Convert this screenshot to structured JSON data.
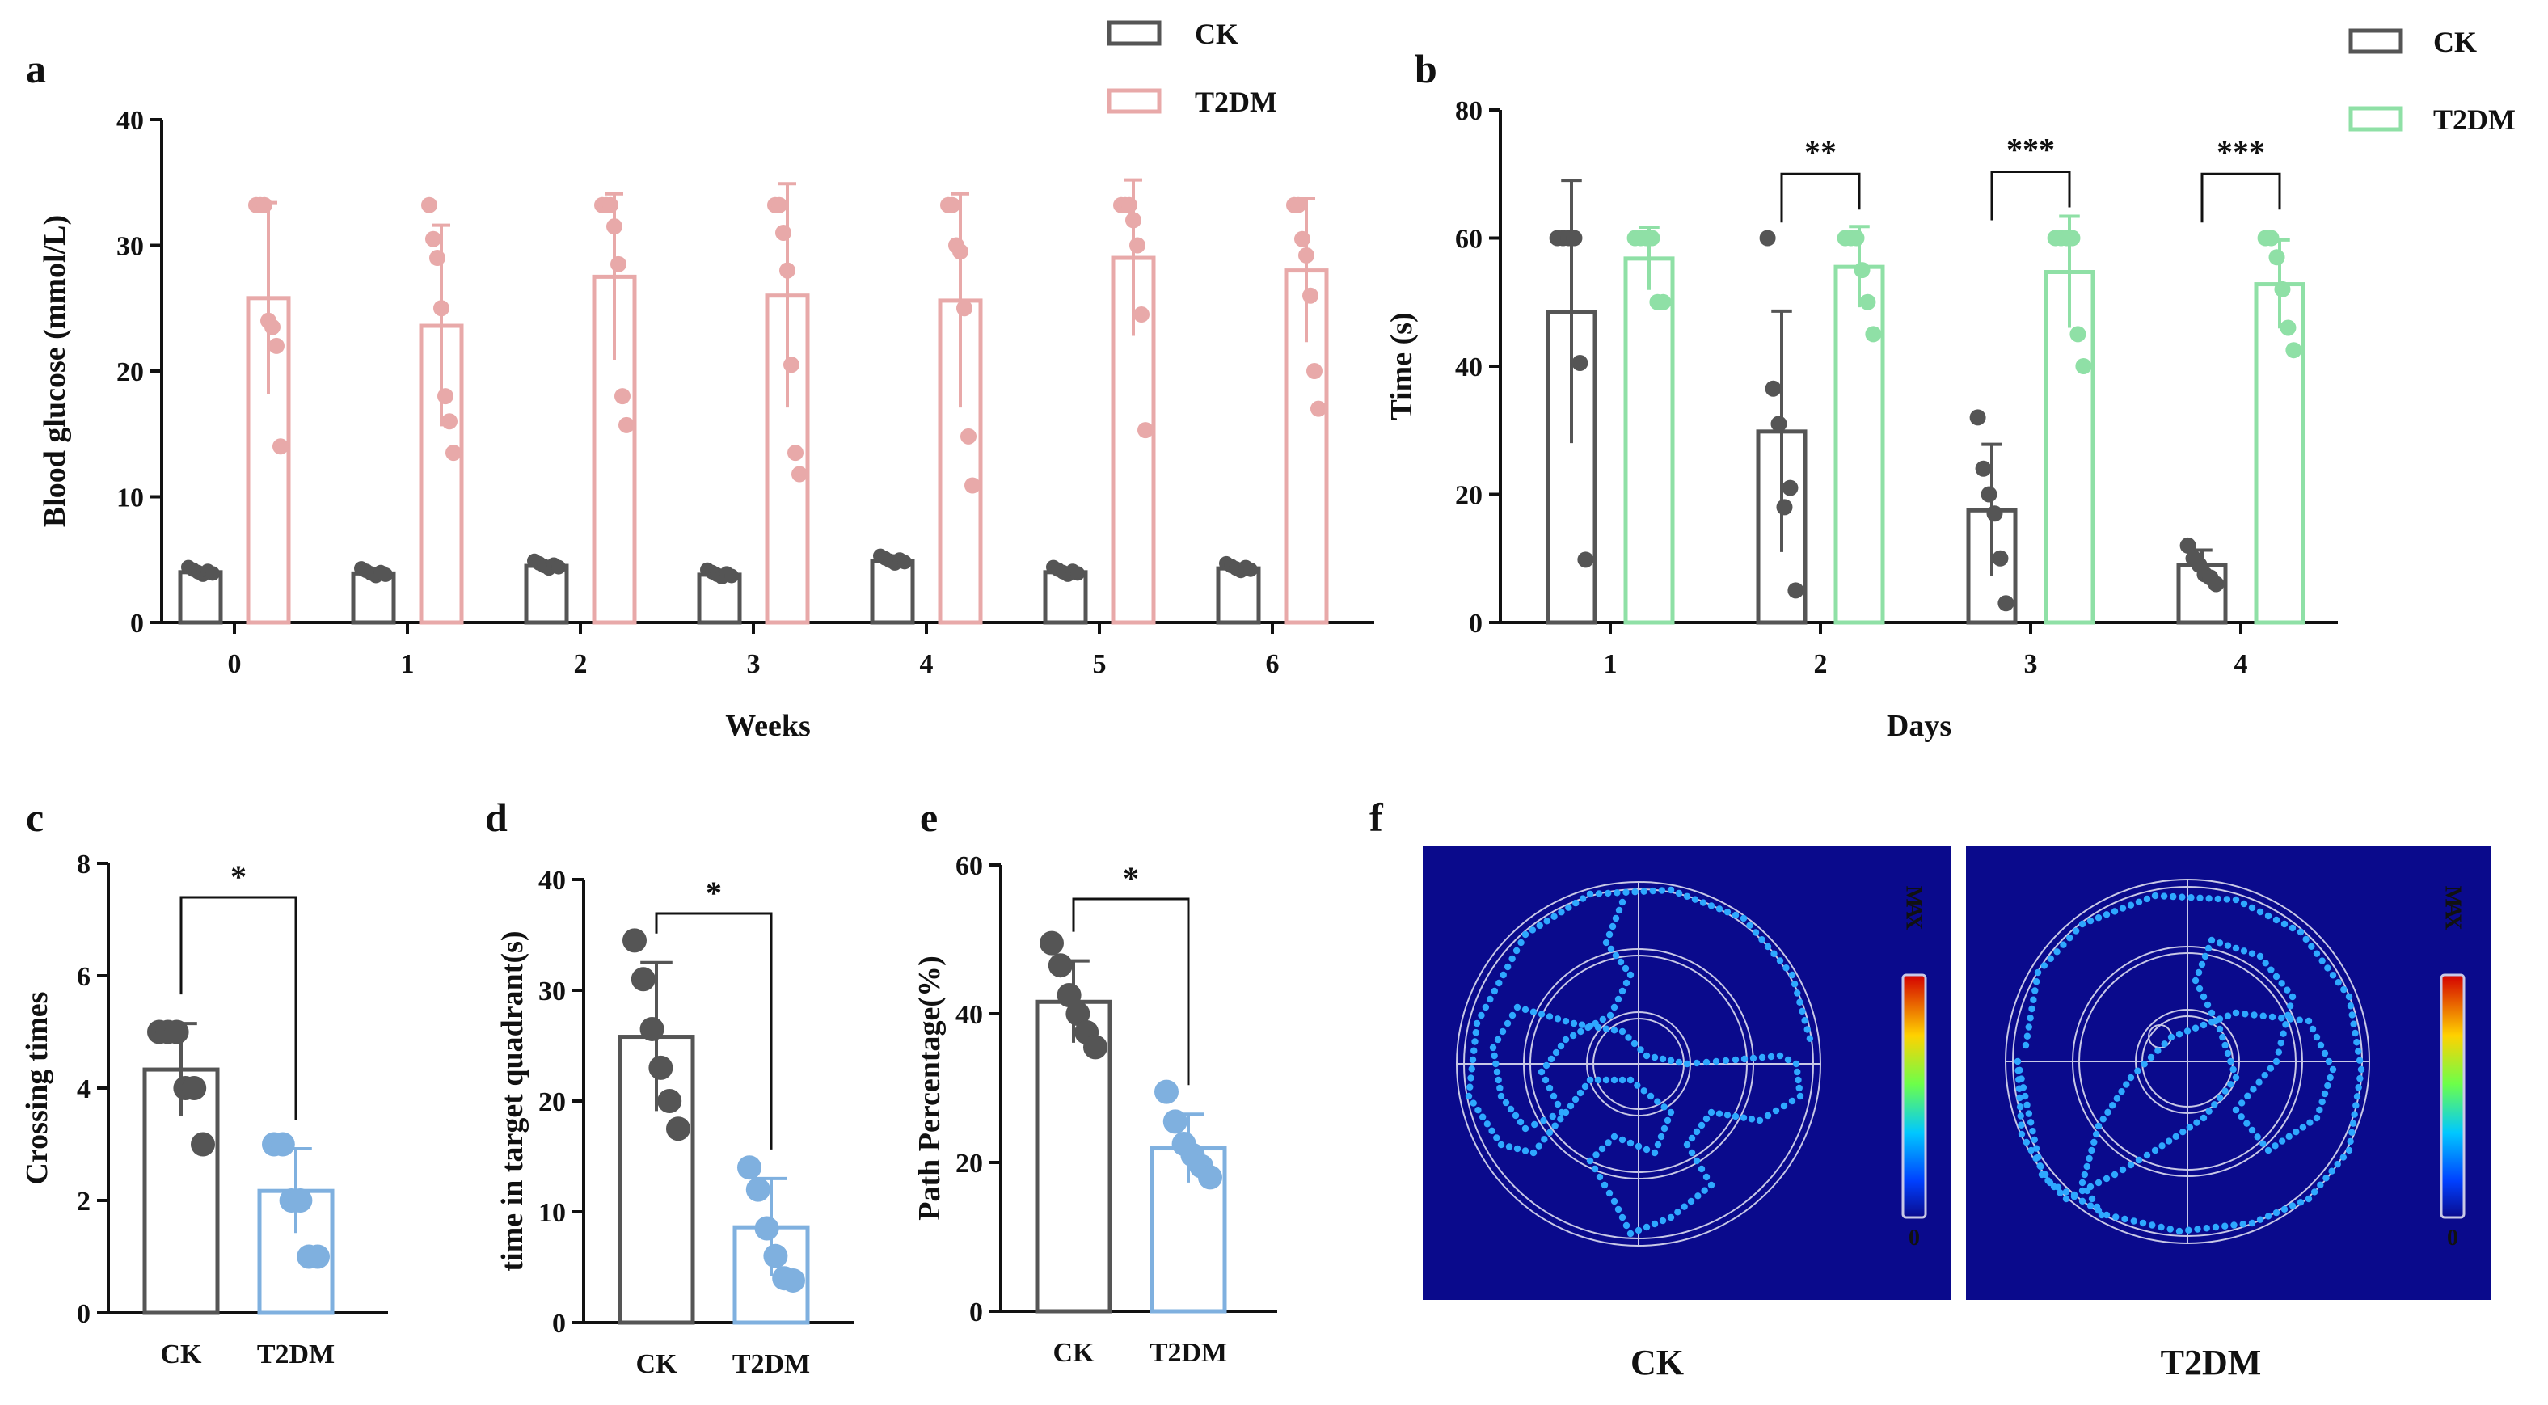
{
  "colors": {
    "ck": "#555555",
    "t2dm_a": "#e8a9a9",
    "t2dm_b": "#8fe0a6",
    "t2dm_c": "#7fb0df",
    "map_bg": "#0a0a8c"
  },
  "panel_a": {
    "letter": "a",
    "legend": [
      {
        "label": "CK"
      },
      {
        "label": "T2DM"
      }
    ],
    "chart_data": {
      "type": "bar",
      "xlabel": "Weeks",
      "ylabel": "Blood glucose (mmol/L)",
      "ylim": [
        0,
        40
      ],
      "yticks": [
        "0",
        "10",
        "20",
        "30",
        "40"
      ],
      "categories": [
        "0",
        "1",
        "2",
        "3",
        "4",
        "5",
        "6"
      ],
      "series": [
        {
          "name": "CK",
          "values": [
            4.0,
            3.9,
            4.5,
            3.8,
            4.9,
            4.0,
            4.3
          ],
          "sd": [
            0.3,
            0.2,
            0.3,
            0.3,
            0.4,
            0.2,
            0.3
          ]
        },
        {
          "name": "T2DM",
          "values": [
            25.8,
            23.6,
            27.5,
            26.0,
            25.6,
            29.0,
            28.0
          ],
          "sd": [
            7.6,
            8.0,
            6.6,
            8.9,
            8.5,
            6.2,
            5.7
          ],
          "points": [
            [
              33.2,
              33.2,
              33.2,
              24,
              23.5,
              22,
              14
            ],
            [
              33.2,
              30.5,
              29,
              25,
              18,
              16,
              13.5
            ],
            [
              33.2,
              33.2,
              33.2,
              31.5,
              28.5,
              18,
              15.7
            ],
            [
              33.2,
              33.2,
              31,
              28,
              20.5,
              13.5,
              11.8
            ],
            [
              33.2,
              33.2,
              30,
              29.5,
              25,
              14.8,
              10.9
            ],
            [
              33.2,
              33.2,
              33.2,
              32,
              30,
              24.5,
              15.3
            ],
            [
              33.2,
              33.2,
              30.5,
              29.2,
              26,
              20,
              17
            ]
          ]
        }
      ]
    }
  },
  "panel_b": {
    "letter": "b",
    "legend": [
      {
        "label": "CK"
      },
      {
        "label": "T2DM"
      }
    ],
    "chart_data": {
      "type": "bar",
      "xlabel": "Days",
      "ylabel": "Time (s)",
      "ylim": [
        0,
        80
      ],
      "yticks": [
        "0",
        "20",
        "40",
        "60",
        "80"
      ],
      "categories": [
        "1",
        "2",
        "3",
        "4"
      ],
      "series": [
        {
          "name": "CK",
          "values": [
            48.5,
            29.8,
            17.5,
            8.9
          ],
          "sd": [
            20.5,
            18.8,
            10.3,
            2.4
          ],
          "points": [
            [
              60,
              60,
              60,
              60,
              40.5,
              9.8
            ],
            [
              60,
              36.5,
              31,
              18,
              21,
              5
            ],
            [
              32,
              24,
              20,
              17,
              10,
              3
            ],
            [
              12,
              10,
              9,
              7.5,
              7,
              6
            ]
          ]
        },
        {
          "name": "T2DM",
          "values": [
            56.8,
            55.5,
            54.7,
            52.8
          ],
          "sd": [
            4.9,
            6.3,
            8.7,
            6.9
          ],
          "points": [
            [
              60,
              60,
              60,
              60,
              50,
              50
            ],
            [
              60,
              60,
              60,
              55,
              50,
              45
            ],
            [
              60,
              60,
              60,
              60,
              45,
              40
            ],
            [
              60,
              60,
              57,
              52,
              46,
              42.5
            ]
          ]
        }
      ],
      "significance": [
        "",
        "**",
        "***",
        "***"
      ]
    }
  },
  "panel_c": {
    "letter": "c",
    "chart_data": {
      "type": "bar",
      "xlabel": "",
      "ylabel": "Crossing times",
      "ylim": [
        0,
        8
      ],
      "yticks": [
        "0",
        "2",
        "4",
        "6",
        "8"
      ],
      "categories": [
        "CK",
        "T2DM"
      ],
      "values": [
        4.33,
        2.17
      ],
      "sd": [
        0.82,
        0.75
      ],
      "points": [
        [
          5,
          5,
          5,
          4,
          4,
          3
        ],
        [
          3,
          3,
          2,
          2,
          1,
          1
        ]
      ],
      "significance": "*"
    }
  },
  "panel_d": {
    "letter": "d",
    "chart_data": {
      "type": "bar",
      "xlabel": "",
      "ylabel": "time in target quadrant(s)",
      "ylim": [
        0,
        40
      ],
      "yticks": [
        "0",
        "10",
        "20",
        "30",
        "40"
      ],
      "categories": [
        "CK",
        "T2DM"
      ],
      "values": [
        25.8,
        8.6
      ],
      "sd": [
        6.7,
        4.4
      ],
      "points": [
        [
          34.5,
          31,
          26.5,
          23,
          20,
          17.5
        ],
        [
          14,
          12,
          8.5,
          6,
          4,
          3.8
        ]
      ],
      "significance": "*"
    }
  },
  "panel_e": {
    "letter": "e",
    "chart_data": {
      "type": "bar",
      "xlabel": "",
      "ylabel": "Path Percentage(%)",
      "ylim": [
        0,
        60
      ],
      "yticks": [
        "0",
        "20",
        "40",
        "60"
      ],
      "categories": [
        "CK",
        "T2DM"
      ],
      "values": [
        41.6,
        21.9
      ],
      "sd": [
        5.5,
        4.6
      ],
      "points": [
        [
          49.5,
          46.5,
          42.5,
          40,
          37.5,
          35.5
        ],
        [
          29.5,
          25.5,
          22.5,
          21,
          19.5,
          18
        ]
      ],
      "significance": "*"
    }
  },
  "panel_f": {
    "letter": "f",
    "maps": [
      {
        "label": "CK",
        "scale_max": "MAX",
        "scale_min": "0"
      },
      {
        "label": "T2DM",
        "scale_max": "MAX",
        "scale_min": "0"
      }
    ]
  }
}
